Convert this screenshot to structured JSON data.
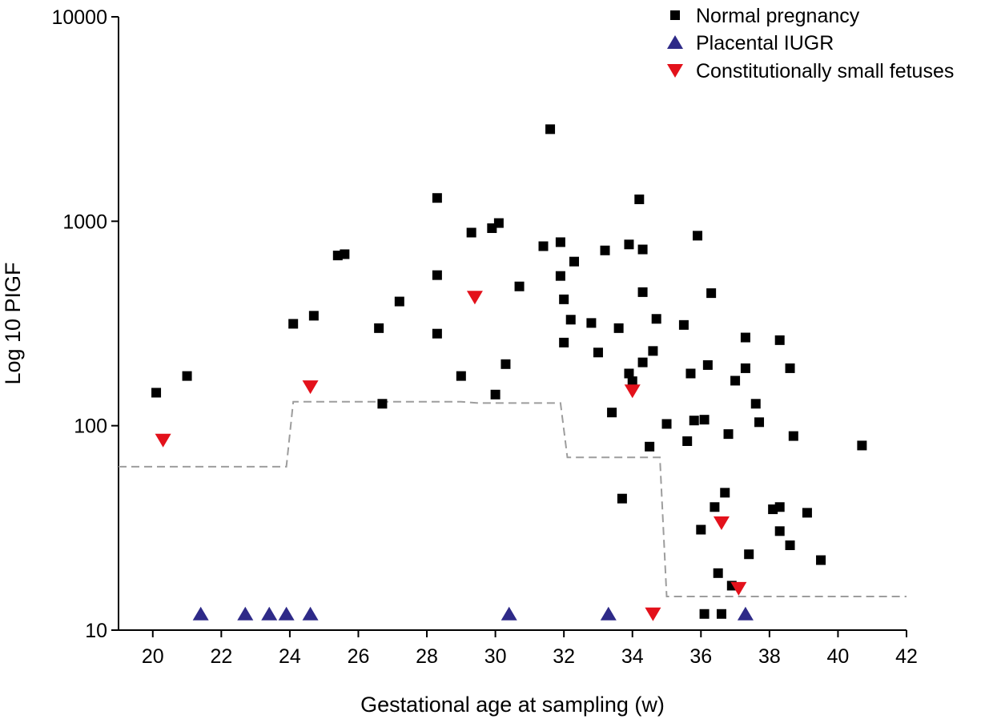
{
  "chart_data": {
    "type": "scatter",
    "xlabel": "Gestational age at sampling (w)",
    "ylabel": "Log 10 PIGF",
    "xlim": [
      19,
      42
    ],
    "ylim": [
      10,
      10000
    ],
    "yscale": "log",
    "x_ticks": [
      "20",
      "22",
      "24",
      "26",
      "28",
      "30",
      "32",
      "34",
      "36",
      "38",
      "40",
      "42"
    ],
    "y_ticks": [
      "10",
      "100",
      "1000",
      "10000"
    ],
    "legend_position": "top-right",
    "series": [
      {
        "name": "Normal pregnancy",
        "marker": "square",
        "color": "#000000",
        "points": [
          [
            20.1,
            145
          ],
          [
            21.0,
            175
          ],
          [
            24.1,
            315
          ],
          [
            24.7,
            345
          ],
          [
            25.4,
            680
          ],
          [
            25.6,
            690
          ],
          [
            26.6,
            300
          ],
          [
            26.7,
            128
          ],
          [
            27.2,
            405
          ],
          [
            28.3,
            1300
          ],
          [
            28.3,
            545
          ],
          [
            28.3,
            282
          ],
          [
            29.0,
            175
          ],
          [
            29.3,
            880
          ],
          [
            29.9,
            925
          ],
          [
            30.0,
            142
          ],
          [
            30.1,
            980
          ],
          [
            30.3,
            200
          ],
          [
            30.7,
            480
          ],
          [
            31.4,
            755
          ],
          [
            31.6,
            2820
          ],
          [
            31.9,
            790
          ],
          [
            31.9,
            540
          ],
          [
            32.0,
            415
          ],
          [
            32.0,
            255
          ],
          [
            32.2,
            330
          ],
          [
            32.3,
            635
          ],
          [
            32.8,
            318
          ],
          [
            33.0,
            228
          ],
          [
            33.2,
            720
          ],
          [
            33.4,
            116
          ],
          [
            33.6,
            300
          ],
          [
            33.7,
            44
          ],
          [
            33.9,
            770
          ],
          [
            33.9,
            180
          ],
          [
            34.0,
            165
          ],
          [
            34.2,
            1280
          ],
          [
            34.3,
            728
          ],
          [
            34.3,
            450
          ],
          [
            34.3,
            204
          ],
          [
            34.5,
            79
          ],
          [
            34.6,
            232
          ],
          [
            34.7,
            333
          ],
          [
            35.0,
            102
          ],
          [
            35.5,
            311
          ],
          [
            35.6,
            84
          ],
          [
            35.7,
            180
          ],
          [
            35.8,
            106
          ],
          [
            35.9,
            850
          ],
          [
            36.0,
            31
          ],
          [
            36.1,
            107
          ],
          [
            36.2,
            198
          ],
          [
            36.3,
            445
          ],
          [
            36.4,
            40
          ],
          [
            36.5,
            19
          ],
          [
            36.7,
            47
          ],
          [
            36.8,
            91
          ],
          [
            36.9,
            16.5
          ],
          [
            37.0,
            166
          ],
          [
            37.3,
            270
          ],
          [
            37.3,
            191
          ],
          [
            37.4,
            23.5
          ],
          [
            37.6,
            128
          ],
          [
            37.7,
            104
          ],
          [
            38.1,
            39
          ],
          [
            38.3,
            262
          ],
          [
            38.3,
            40
          ],
          [
            38.3,
            30.5
          ],
          [
            38.6,
            191
          ],
          [
            38.6,
            26
          ],
          [
            38.7,
            89
          ],
          [
            39.1,
            37.5
          ],
          [
            39.5,
            22
          ],
          [
            40.7,
            80
          ],
          [
            36.1,
            12
          ],
          [
            36.6,
            12
          ]
        ]
      },
      {
        "name": "Placental IUGR",
        "marker": "triangle-up",
        "color": "#2e2a88",
        "points": [
          [
            21.4,
            12
          ],
          [
            22.7,
            12
          ],
          [
            23.4,
            12
          ],
          [
            23.9,
            12
          ],
          [
            24.6,
            12
          ],
          [
            30.4,
            12
          ],
          [
            33.3,
            12
          ],
          [
            37.3,
            12
          ]
        ]
      },
      {
        "name": "Constitutionally small fetuses",
        "marker": "triangle-down",
        "color": "#e3111b",
        "points": [
          [
            20.3,
            85
          ],
          [
            24.6,
            155
          ],
          [
            29.4,
            425
          ],
          [
            34.0,
            148
          ],
          [
            34.6,
            12
          ],
          [
            36.6,
            33.5
          ],
          [
            37.1,
            16
          ]
        ]
      }
    ],
    "threshold_line": {
      "style": "dashed",
      "color": "#9d9d9d",
      "points": [
        [
          19.0,
          63
        ],
        [
          23.9,
          63
        ],
        [
          24.1,
          131
        ],
        [
          29.0,
          131
        ],
        [
          29.5,
          129
        ],
        [
          31.9,
          129
        ],
        [
          32.1,
          70
        ],
        [
          34.8,
          70
        ],
        [
          35.0,
          14.6
        ],
        [
          42.0,
          14.6
        ]
      ]
    }
  }
}
